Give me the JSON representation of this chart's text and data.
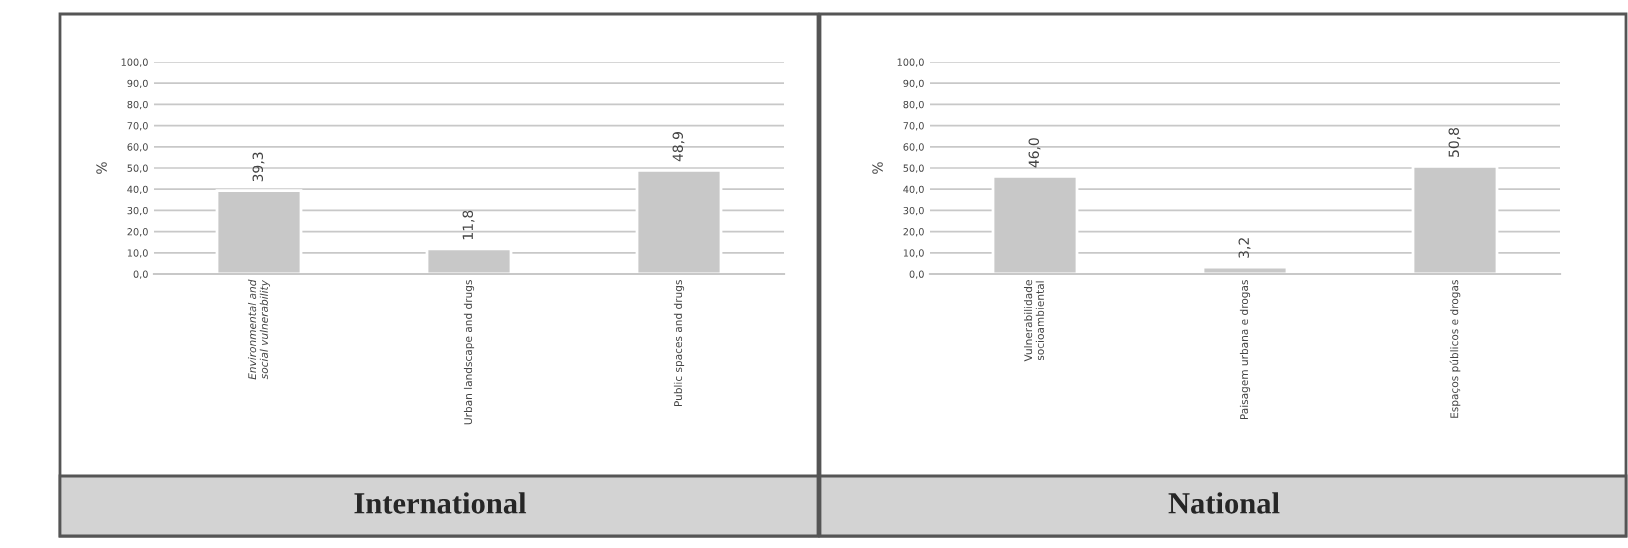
{
  "chart_data": [
    {
      "type": "bar",
      "title": "International",
      "ylabel": "%",
      "categories": [
        "Environmental and\nsocial vulnerability",
        "Urban landscape and drugs",
        "Public spaces and drugs"
      ],
      "values": [
        39.3,
        11.8,
        48.9
      ],
      "value_labels": [
        "39,3",
        "11,8",
        "48,9"
      ],
      "color": "#c8c8c8",
      "ylim": [
        0,
        100
      ],
      "yticks": [
        {
          "value": 0,
          "label": "0,0"
        },
        {
          "value": 10,
          "label": "10,0"
        },
        {
          "value": 20,
          "label": "20,0"
        },
        {
          "value": 30,
          "label": "30,0"
        },
        {
          "value": 40,
          "label": "40,0"
        },
        {
          "value": 50,
          "label": "50,0"
        },
        {
          "value": 60,
          "label": "60,0"
        },
        {
          "value": 70,
          "label": "70,0"
        },
        {
          "value": 80,
          "label": "80,0"
        },
        {
          "value": 90,
          "label": "90,0"
        },
        {
          "value": 100,
          "label": "100,0"
        }
      ],
      "grid": "y"
    },
    {
      "type": "bar",
      "title": "National",
      "ylabel": "%",
      "categories": [
        "Vulnerabilidade\nsocioambiental",
        "Paisagem urbana e drogas",
        "Espaços públicos e drogas"
      ],
      "values": [
        46.0,
        3.2,
        50.8
      ],
      "value_labels": [
        "46,0",
        "3,2",
        "50,8"
      ],
      "color": "#c8c8c8",
      "ylim": [
        0,
        100
      ],
      "yticks": [
        {
          "value": 0,
          "label": "0,0"
        },
        {
          "value": 10,
          "label": "10,0"
        },
        {
          "value": 20,
          "label": "20,0"
        },
        {
          "value": 30,
          "label": "30,0"
        },
        {
          "value": 40,
          "label": "40,0"
        },
        {
          "value": 50,
          "label": "50,0"
        },
        {
          "value": 60,
          "label": "60,0"
        },
        {
          "value": 70,
          "label": "70,0"
        },
        {
          "value": 80,
          "label": "80,0"
        },
        {
          "value": 90,
          "label": "90,0"
        },
        {
          "value": 100,
          "label": "100,0"
        }
      ],
      "grid": "y"
    }
  ]
}
